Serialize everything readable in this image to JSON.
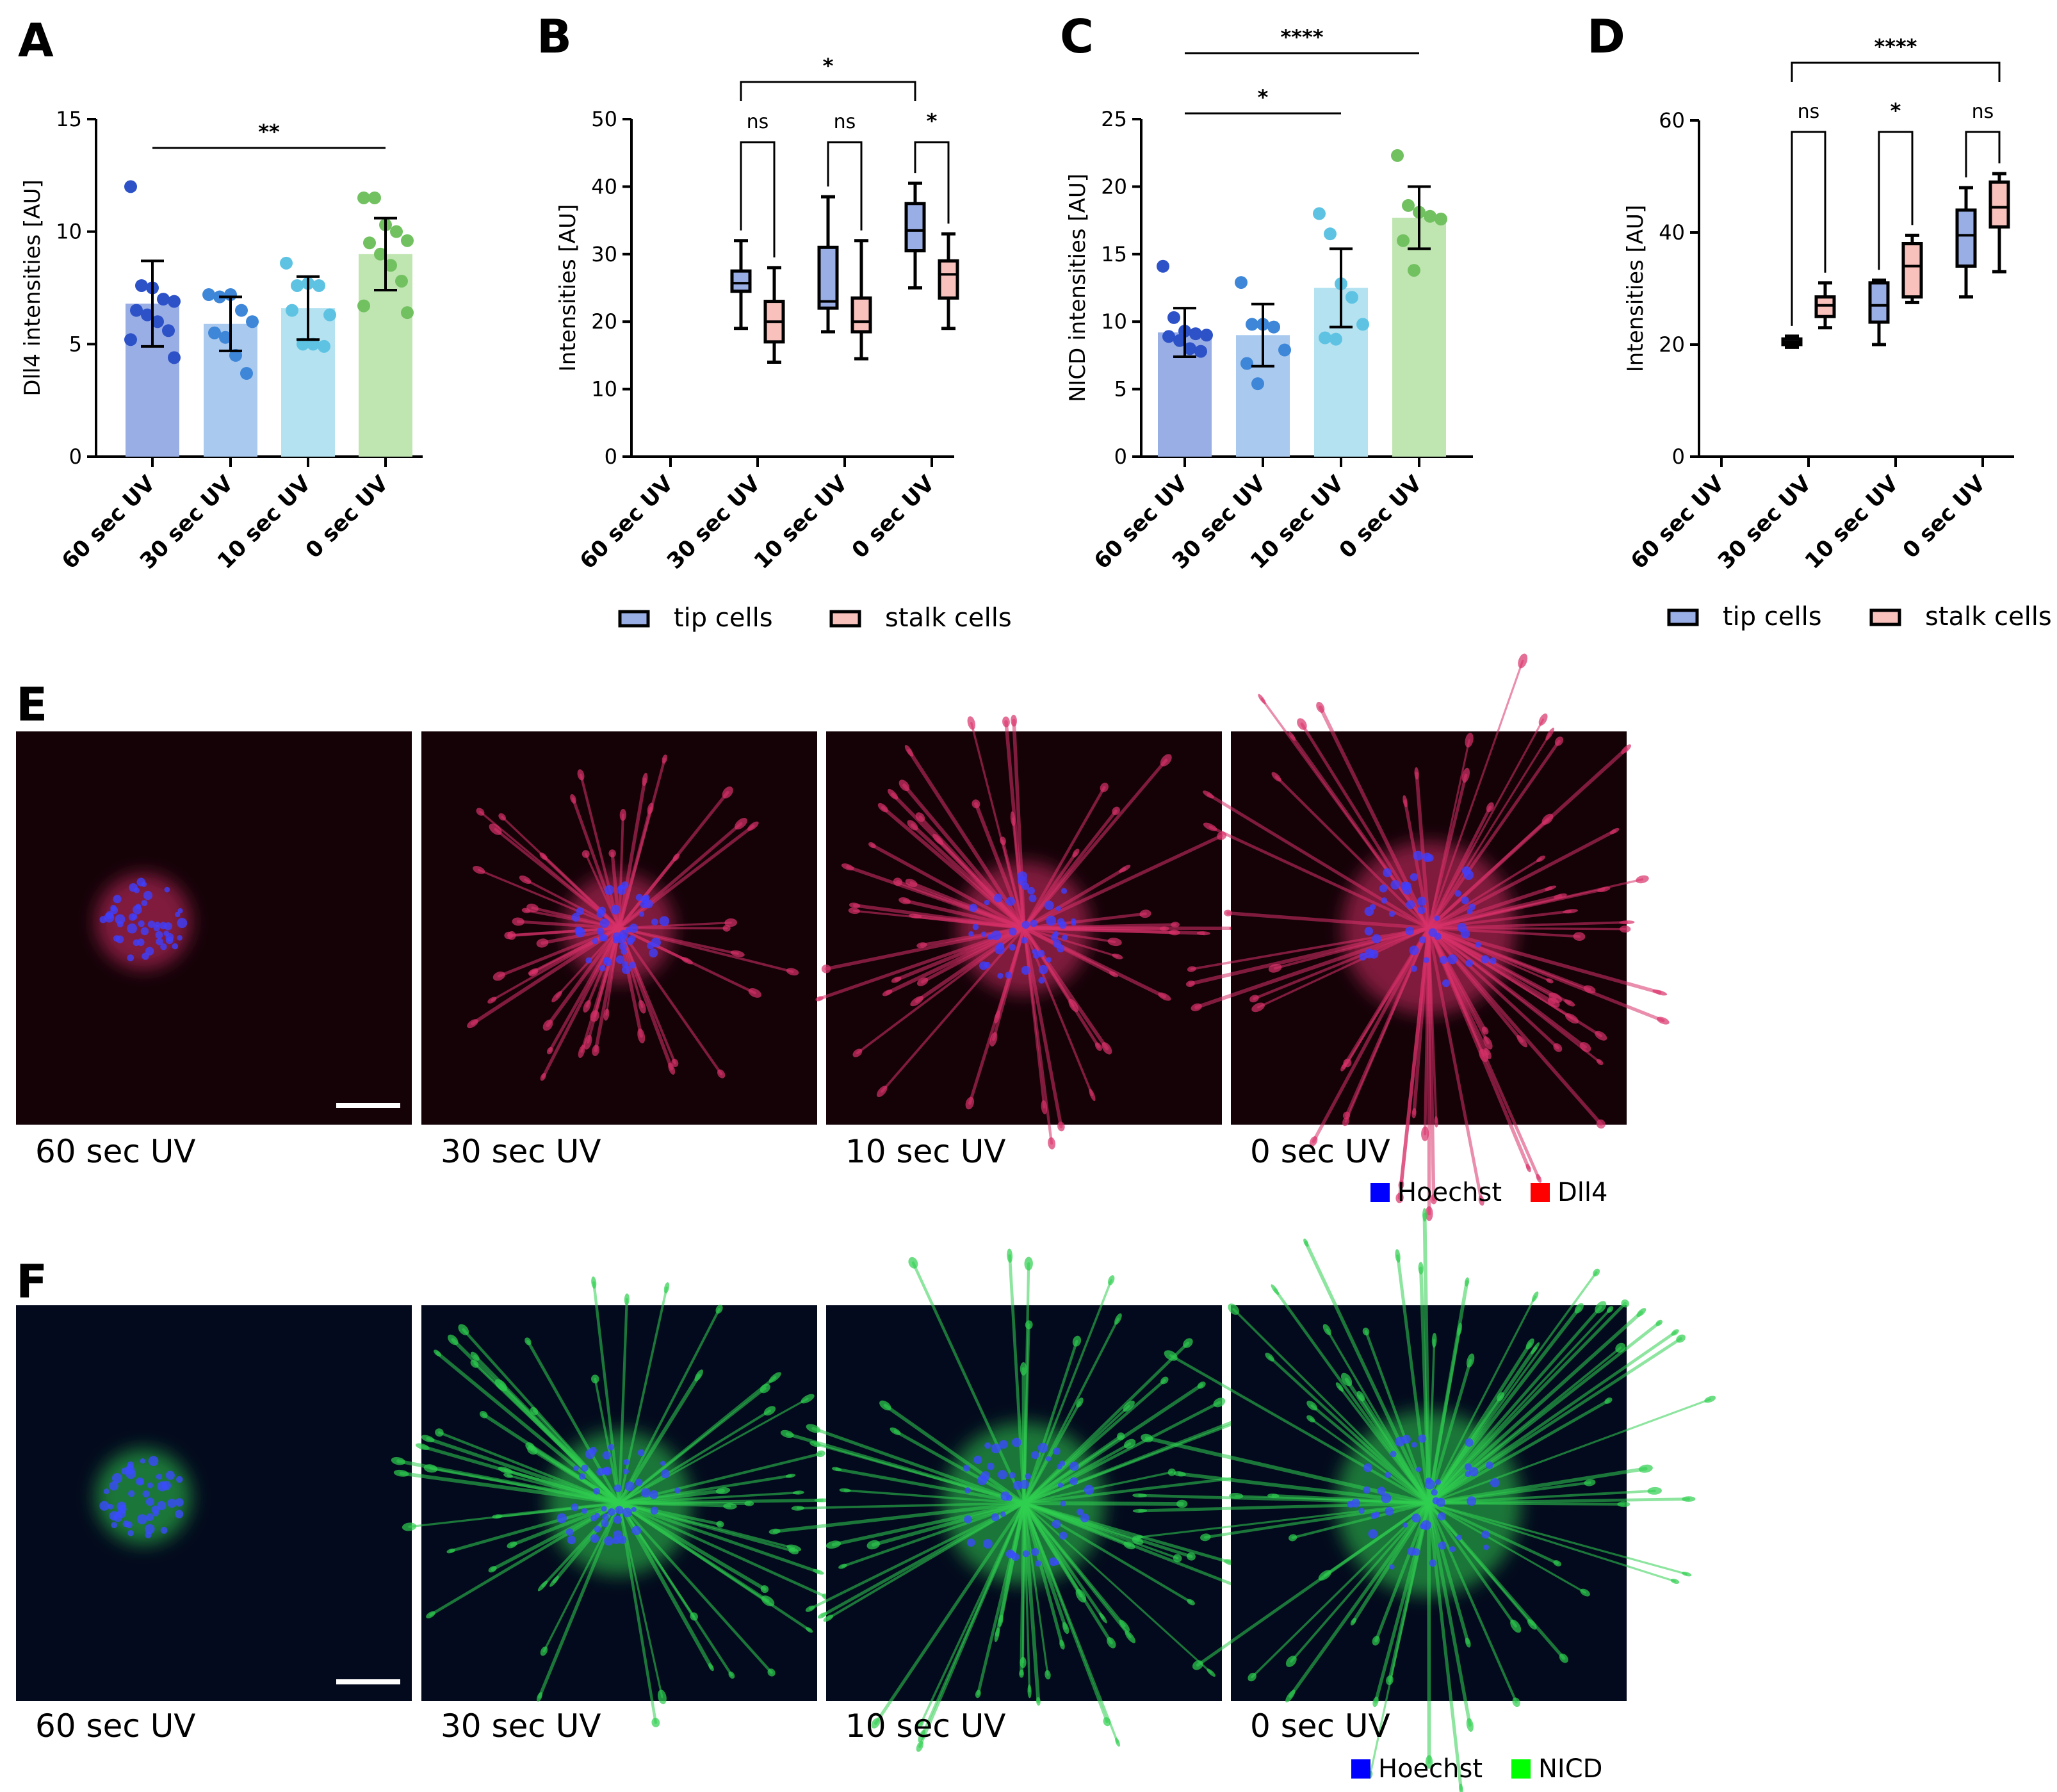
{
  "panel_labels": [
    "A",
    "B",
    "C",
    "D",
    "E",
    "F"
  ],
  "colors": {
    "bar_60": "#9aaee6",
    "bar_30": "#a9c9ef",
    "bar_10": "#b4e2f1",
    "bar_0": "#bfe5b1",
    "dot_60": "#2d52c8",
    "dot_30": "#3d86d8",
    "dot_10": "#5ec3e3",
    "dot_0": "#72c160",
    "tip": "#9aaee6",
    "stalk": "#f8c1bc",
    "hoechst": "#0000ff",
    "dll4": "#ff0000",
    "nicd": "#00ff00"
  },
  "chart_data": [
    {
      "id": "A",
      "type": "bar",
      "title": "",
      "categories": [
        "60 sec UV",
        "30 sec UV",
        "10 sec UV",
        "0 sec UV"
      ],
      "ylabel": "Dll4 intensities [AU]",
      "xlabel": "",
      "ylim": [
        0,
        15
      ],
      "yticks": [
        0,
        5,
        10,
        15
      ],
      "grid": false,
      "values": [
        6.8,
        5.9,
        6.6,
        9.0
      ],
      "errors": [
        1.9,
        1.2,
        1.4,
        1.6
      ],
      "points": [
        [
          12.0,
          7.6,
          7.5,
          7.0,
          6.9,
          6.5,
          6.3,
          6.0,
          5.6,
          5.2,
          4.4
        ],
        [
          7.2,
          7.1,
          7.2,
          6.5,
          6.0,
          5.5,
          5.3,
          4.5,
          3.7
        ],
        [
          8.6,
          7.6,
          7.7,
          7.6,
          6.3,
          6.5,
          5.0,
          5.0,
          4.9
        ],
        [
          11.5,
          11.5,
          10.3,
          10.0,
          9.6,
          9.5,
          9.0,
          8.5,
          7.8,
          6.7,
          6.4
        ]
      ],
      "significance": [
        {
          "from": 0,
          "to": 3,
          "label": "**"
        }
      ]
    },
    {
      "id": "B",
      "type": "box",
      "title": "",
      "categories": [
        "60 sec UV",
        "30 sec UV",
        "10 sec UV",
        "0 sec UV"
      ],
      "ylabel": "Intensities [AU]",
      "xlabel": "",
      "ylim": [
        0,
        50
      ],
      "yticks": [
        0,
        10,
        20,
        30,
        40,
        50
      ],
      "grid": false,
      "legend": {
        "position": "bottom",
        "entries": [
          "tip cells",
          "stalk cells"
        ]
      },
      "series": [
        {
          "name": "tip cells",
          "boxes": [
            null,
            {
              "min": 19,
              "q1": 24.5,
              "median": 25.7,
              "q3": 27.5,
              "max": 32
            },
            {
              "min": 18.5,
              "q1": 22,
              "median": 23,
              "q3": 31,
              "max": 38.5
            },
            {
              "min": 25,
              "q1": 30.5,
              "median": 33.5,
              "q3": 37.5,
              "max": 40.5
            }
          ]
        },
        {
          "name": "stalk cells",
          "boxes": [
            null,
            {
              "min": 14,
              "q1": 17,
              "median": 20,
              "q3": 23,
              "max": 28
            },
            {
              "min": 14.5,
              "q1": 18.5,
              "median": 20,
              "q3": 23.5,
              "max": 32
            },
            {
              "min": 19,
              "q1": 23.5,
              "median": 27,
              "q3": 29,
              "max": 33
            }
          ]
        }
      ],
      "significance": [
        {
          "cat": 1,
          "label": "ns"
        },
        {
          "cat": 2,
          "label": "ns"
        },
        {
          "cat": 3,
          "label": "*"
        },
        {
          "from_cat": 1,
          "to_cat": 3,
          "label": "*"
        }
      ]
    },
    {
      "id": "C",
      "type": "bar",
      "title": "",
      "categories": [
        "60 sec UV",
        "30 sec UV",
        "10 sec UV",
        "0 sec UV"
      ],
      "ylabel": "NICD intensities [AU]",
      "xlabel": "",
      "ylim": [
        0,
        25
      ],
      "yticks": [
        0,
        5,
        10,
        15,
        20,
        25
      ],
      "grid": false,
      "values": [
        9.2,
        9.0,
        12.5,
        17.7
      ],
      "errors": [
        1.8,
        2.3,
        2.9,
        2.3
      ],
      "points": [
        [
          14.1,
          10.3,
          9.3,
          9.1,
          9.0,
          8.9,
          8.6,
          8.0,
          7.8
        ],
        [
          12.9,
          9.8,
          9.8,
          9.6,
          7.9,
          6.9,
          5.4
        ],
        [
          18.0,
          16.5,
          12.8,
          11.8,
          9.8,
          8.8,
          8.7
        ],
        [
          22.3,
          18.6,
          18.1,
          17.8,
          17.6,
          16.0,
          13.8
        ]
      ],
      "significance": [
        {
          "from": 0,
          "to": 2,
          "label": "*"
        },
        {
          "from": 0,
          "to": 3,
          "label": "****"
        }
      ]
    },
    {
      "id": "D",
      "type": "box",
      "title": "",
      "categories": [
        "60 sec UV",
        "30 sec UV",
        "10 sec UV",
        "0 sec UV"
      ],
      "ylabel": "Intensities [AU]",
      "xlabel": "",
      "ylim": [
        0,
        60
      ],
      "yticks": [
        0,
        20,
        40,
        60
      ],
      "grid": false,
      "legend": {
        "position": "bottom",
        "entries": [
          "tip cells",
          "stalk cells"
        ]
      },
      "series": [
        {
          "name": "tip cells",
          "boxes": [
            null,
            {
              "min": 19.5,
              "q1": 20,
              "median": 20.5,
              "q3": 21,
              "max": 21.5
            },
            {
              "min": 20,
              "q1": 24,
              "median": 27,
              "q3": 31,
              "max": 31.5
            },
            {
              "min": 28.5,
              "q1": 34,
              "median": 39.5,
              "q3": 44,
              "max": 48
            }
          ]
        },
        {
          "name": "stalk cells",
          "boxes": [
            null,
            {
              "min": 23,
              "q1": 25,
              "median": 27,
              "q3": 28.5,
              "max": 31
            },
            {
              "min": 27.5,
              "q1": 28.5,
              "median": 34,
              "q3": 38,
              "max": 39.5
            },
            {
              "min": 33,
              "q1": 41,
              "median": 44.5,
              "q3": 49,
              "max": 50.5
            }
          ]
        }
      ],
      "significance": [
        {
          "cat": 1,
          "label": "ns"
        },
        {
          "cat": 2,
          "label": "*"
        },
        {
          "cat": 3,
          "label": "ns"
        },
        {
          "from_cat": 1,
          "to_cat": 3,
          "label": "****"
        }
      ]
    }
  ],
  "micrographs": {
    "E": {
      "captions": [
        "60 sec UV",
        "30 sec UV",
        "10 sec UV",
        "0 sec UV"
      ],
      "channels": [
        {
          "name": "Hoechst",
          "color": "#0000ff"
        },
        {
          "name": "Dll4",
          "color": "#ff0000"
        }
      ]
    },
    "F": {
      "captions": [
        "60 sec UV",
        "30 sec UV",
        "10 sec UV",
        "0 sec UV"
      ],
      "channels": [
        {
          "name": "Hoechst",
          "color": "#0000ff"
        },
        {
          "name": "NICD",
          "color": "#00ff00"
        }
      ]
    }
  }
}
